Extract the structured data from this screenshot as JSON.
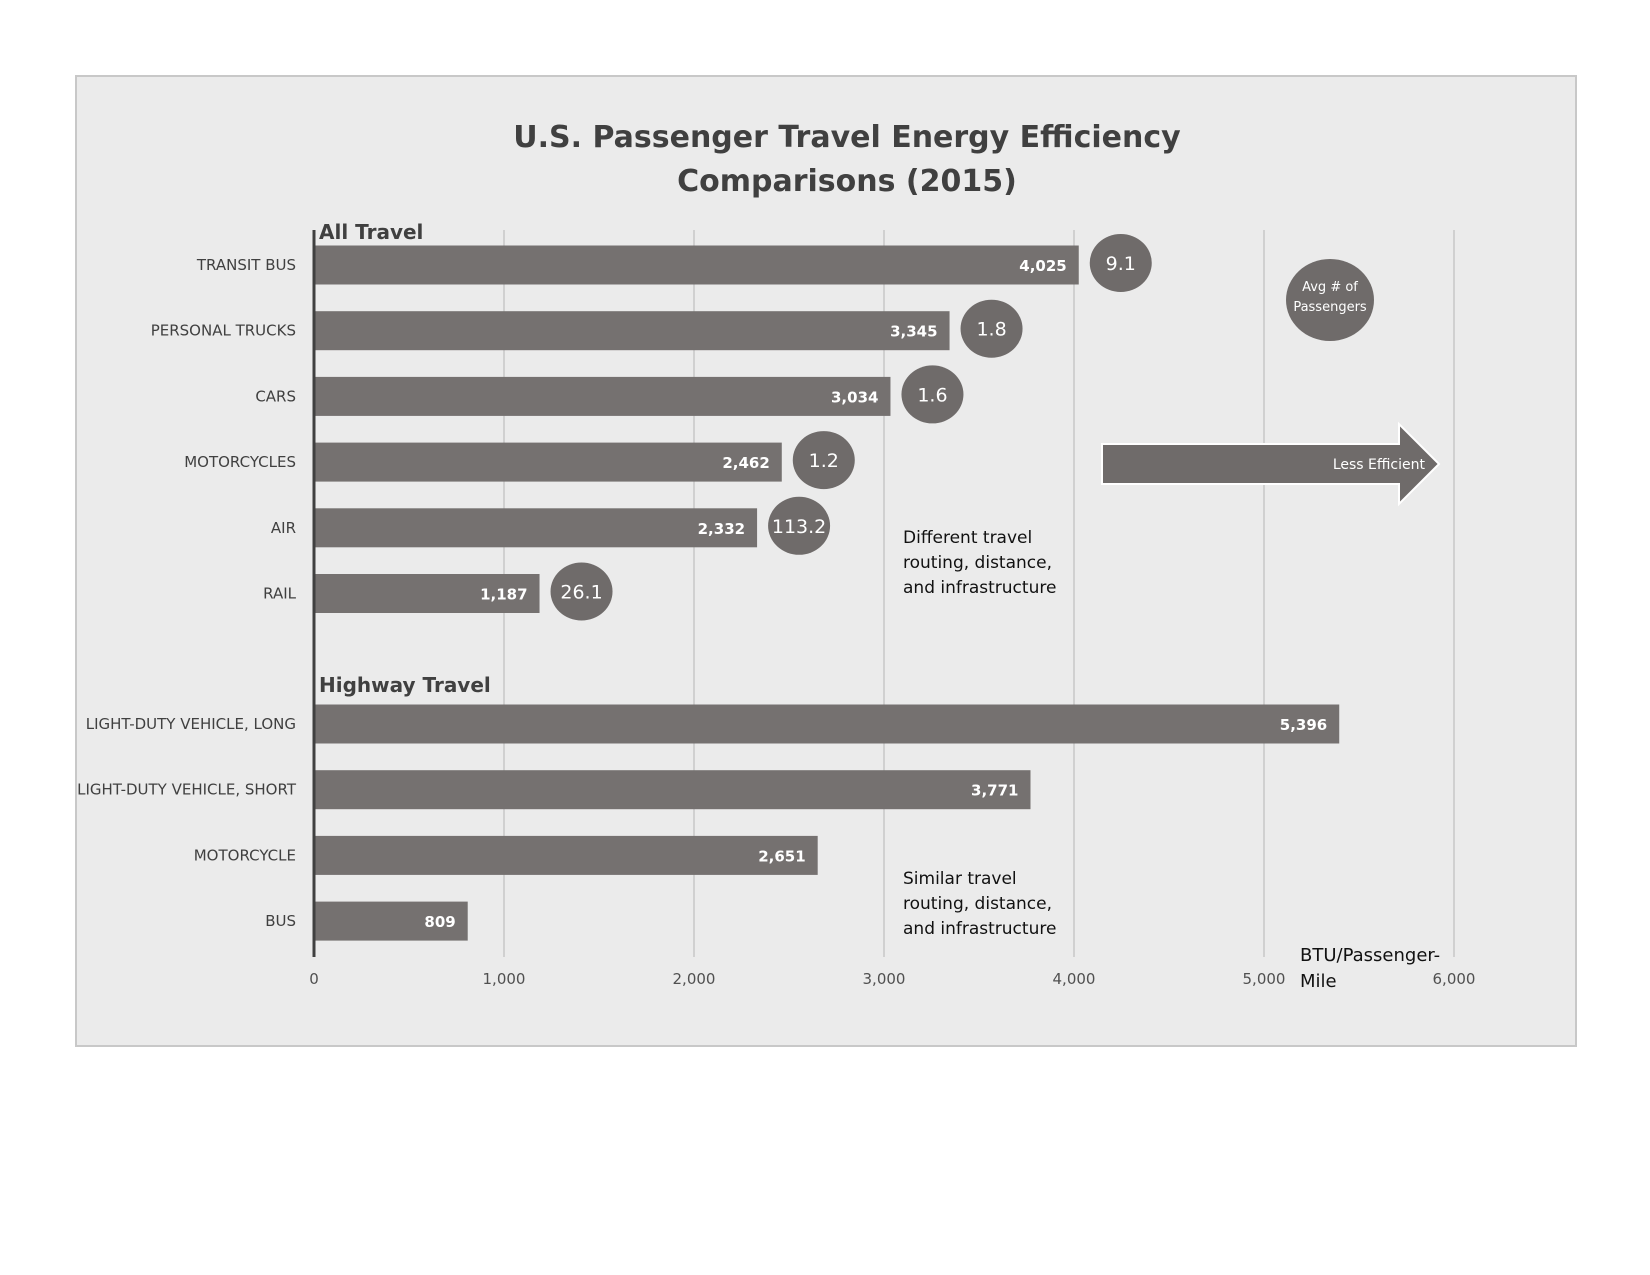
{
  "colors": {
    "bar": "#757170",
    "bubble": "#6f6b6a",
    "axis": "#404040",
    "grid": "#b4b4b4",
    "background": "#ebebeb"
  },
  "chart_data": {
    "type": "bar",
    "orientation": "horizontal",
    "title_lines": [
      "U.S. Passenger Travel Energy Efficiency",
      "Comparisons (2015)"
    ],
    "xlabel": "BTU/Passenger-Mile",
    "xlim": [
      0,
      6000
    ],
    "xticks": [
      0,
      1000,
      2000,
      3000,
      4000,
      5000,
      6000
    ],
    "xtick_labels": [
      "0",
      "1,000",
      "2,000",
      "3,000",
      "4,000",
      "5,000",
      "6,000"
    ],
    "grid": "vertical",
    "groups": [
      {
        "name": "All Travel",
        "note_lines": [
          "Different travel",
          "routing, distance,",
          "and infrastructure"
        ],
        "categories": [
          "TRANSIT BUS",
          "PERSONAL TRUCKS",
          "CARS",
          "MOTORCYCLES",
          "AIR",
          "RAIL"
        ],
        "values": [
          4025,
          3345,
          3034,
          2462,
          2332,
          1187
        ],
        "value_labels": [
          "4,025",
          "3,345",
          "3,034",
          "2,462",
          "2,332",
          "1,187"
        ],
        "avg_passengers": [
          "9.1",
          "1.8",
          "1.6",
          "1.2",
          "113.2",
          "26.1"
        ]
      },
      {
        "name": "Highway Travel",
        "note_lines": [
          "Similar travel",
          "routing, distance,",
          "and infrastructure"
        ],
        "categories": [
          "LIGHT-DUTY VEHICLE, LONG",
          "LIGHT-DUTY VEHICLE, SHORT",
          "MOTORCYCLE",
          "BUS"
        ],
        "values": [
          5396,
          3771,
          2651,
          809
        ],
        "value_labels": [
          "5,396",
          "3,771",
          "2,651",
          "809"
        ]
      }
    ],
    "legend": {
      "bubble_lines": [
        "Avg # of",
        "Passengers"
      ],
      "placement": "top-right"
    },
    "arrow_label": "Less Efficient"
  }
}
